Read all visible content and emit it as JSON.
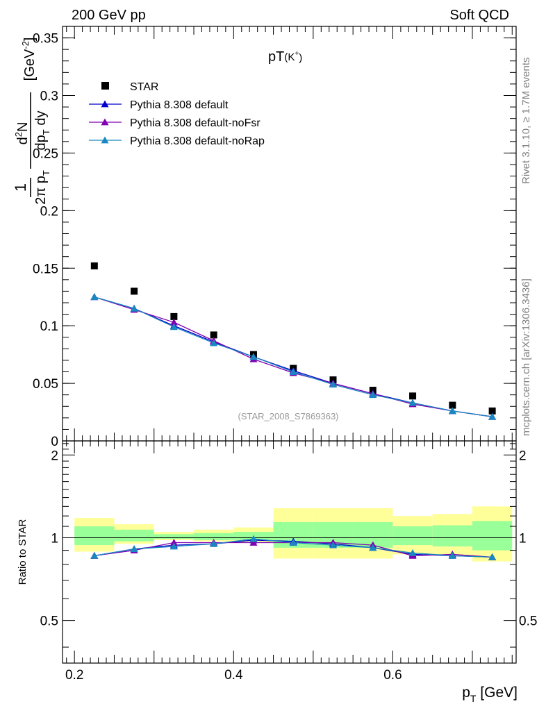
{
  "header": {
    "left": "200 GeV pp",
    "right": "Soft QCD"
  },
  "side": {
    "rivet": "Rivet 3.1.10, ≥ 1.7M events",
    "mcplots": "mcplots.cern.ch [arXiv:1306.3436]"
  },
  "watermark": "(STAR_2008_S7869363)",
  "chart_data": [
    {
      "type": "scatter",
      "title": "pT(K⁺)",
      "ylabel": "1/(2π p_T) d²N/(dp_T dy) [GeV⁻²]",
      "xlabel": "",
      "xlim": [
        0.185,
        0.755
      ],
      "ylim": [
        0,
        0.36
      ],
      "yticks": [
        0,
        0.05,
        0.1,
        0.15,
        0.2,
        0.25,
        0.3,
        0.35
      ],
      "ytick_labels": [
        "0",
        "0.05",
        "0.1",
        "0.15",
        "0.2",
        "0.25",
        "0.3",
        "0.35"
      ],
      "legend": {
        "placement": "top-left",
        "entries": [
          "STAR",
          "Pythia 8.308 default",
          "Pythia 8.308 default-noFsr",
          "Pythia 8.308 default-noRap"
        ]
      },
      "x": [
        0.225,
        0.275,
        0.325,
        0.375,
        0.425,
        0.475,
        0.525,
        0.575,
        0.625,
        0.675,
        0.725
      ],
      "series": [
        {
          "name": "STAR",
          "color": "#000000",
          "marker": "square",
          "values": [
            0.152,
            0.13,
            0.108,
            0.092,
            0.075,
            0.063,
            0.053,
            0.044,
            0.039,
            0.031,
            0.026
          ]
        },
        {
          "name": "Pythia 8.308 default",
          "color": "#0000cc",
          "marker": "triangle",
          "values": [
            0.125,
            0.115,
            0.1,
            0.086,
            0.073,
            0.061,
            0.05,
            0.041,
            0.033,
            0.026,
            0.021
          ]
        },
        {
          "name": "Pythia 8.308 default-noFsr",
          "color": "#7f00b2",
          "marker": "triangle",
          "values": [
            0.125,
            0.114,
            0.103,
            0.087,
            0.071,
            0.059,
            0.05,
            0.041,
            0.032,
            0.026,
            0.021
          ]
        },
        {
          "name": "Pythia 8.308 default-noRap",
          "color": "#1a88c0",
          "marker": "triangle",
          "values": [
            0.125,
            0.115,
            0.099,
            0.085,
            0.073,
            0.06,
            0.049,
            0.04,
            0.033,
            0.026,
            0.021
          ]
        }
      ]
    },
    {
      "type": "line",
      "ylabel": "Ratio to STAR",
      "xlabel": "p_T [GeV]",
      "xlim": [
        0.185,
        0.755
      ],
      "ylim": [
        0.35,
        2.25
      ],
      "yticks": [
        0.5,
        1,
        2
      ],
      "ytick_labels": [
        "0.5",
        "1",
        "2"
      ],
      "xticks": [
        0.2,
        0.4,
        0.6
      ],
      "xtick_labels": [
        "0.2",
        "0.4",
        "0.6"
      ],
      "log_y": true,
      "bands": [
        {
          "x": [
            0.2,
            0.25
          ],
          "yellow": [
            0.89,
            1.18
          ],
          "green": [
            0.94,
            1.1
          ]
        },
        {
          "x": [
            0.25,
            0.3
          ],
          "yellow": [
            0.95,
            1.12
          ],
          "green": [
            0.97,
            1.07
          ]
        },
        {
          "x": [
            0.3,
            0.35
          ],
          "yellow": [
            0.98,
            1.05
          ],
          "green": [
            0.99,
            1.03
          ]
        },
        {
          "x": [
            0.35,
            0.4
          ],
          "yellow": [
            0.97,
            1.07
          ],
          "green": [
            0.98,
            1.04
          ]
        },
        {
          "x": [
            0.4,
            0.45
          ],
          "yellow": [
            0.96,
            1.09
          ],
          "green": [
            0.98,
            1.05
          ]
        },
        {
          "x": [
            0.45,
            0.5
          ],
          "yellow": [
            0.84,
            1.28
          ],
          "green": [
            0.92,
            1.14
          ]
        },
        {
          "x": [
            0.5,
            0.55
          ],
          "yellow": [
            0.84,
            1.28
          ],
          "green": [
            0.92,
            1.14
          ]
        },
        {
          "x": [
            0.55,
            0.6
          ],
          "yellow": [
            0.84,
            1.28
          ],
          "green": [
            0.92,
            1.14
          ]
        },
        {
          "x": [
            0.6,
            0.65
          ],
          "yellow": [
            0.87,
            1.2
          ],
          "green": [
            0.94,
            1.1
          ]
        },
        {
          "x": [
            0.65,
            0.7
          ],
          "yellow": [
            0.86,
            1.22
          ],
          "green": [
            0.93,
            1.11
          ]
        },
        {
          "x": [
            0.7,
            0.75
          ],
          "yellow": [
            0.82,
            1.3
          ],
          "green": [
            0.9,
            1.15
          ]
        }
      ],
      "x": [
        0.225,
        0.275,
        0.325,
        0.375,
        0.425,
        0.475,
        0.525,
        0.575,
        0.625,
        0.675,
        0.725
      ],
      "series": [
        {
          "name": "Pythia 8.308 default",
          "color": "#0000cc",
          "values": [
            0.86,
            0.91,
            0.94,
            0.95,
            0.98,
            0.97,
            0.95,
            0.92,
            0.87,
            0.86,
            0.85
          ]
        },
        {
          "name": "Pythia 8.308 default-noFsr",
          "color": "#7f00b2",
          "values": [
            0.86,
            0.9,
            0.96,
            0.96,
            0.96,
            0.96,
            0.96,
            0.94,
            0.86,
            0.87,
            0.85
          ]
        },
        {
          "name": "Pythia 8.308 default-noRap",
          "color": "#1a88c0",
          "values": [
            0.86,
            0.91,
            0.93,
            0.95,
            0.99,
            0.96,
            0.94,
            0.92,
            0.88,
            0.86,
            0.85
          ]
        }
      ]
    }
  ]
}
